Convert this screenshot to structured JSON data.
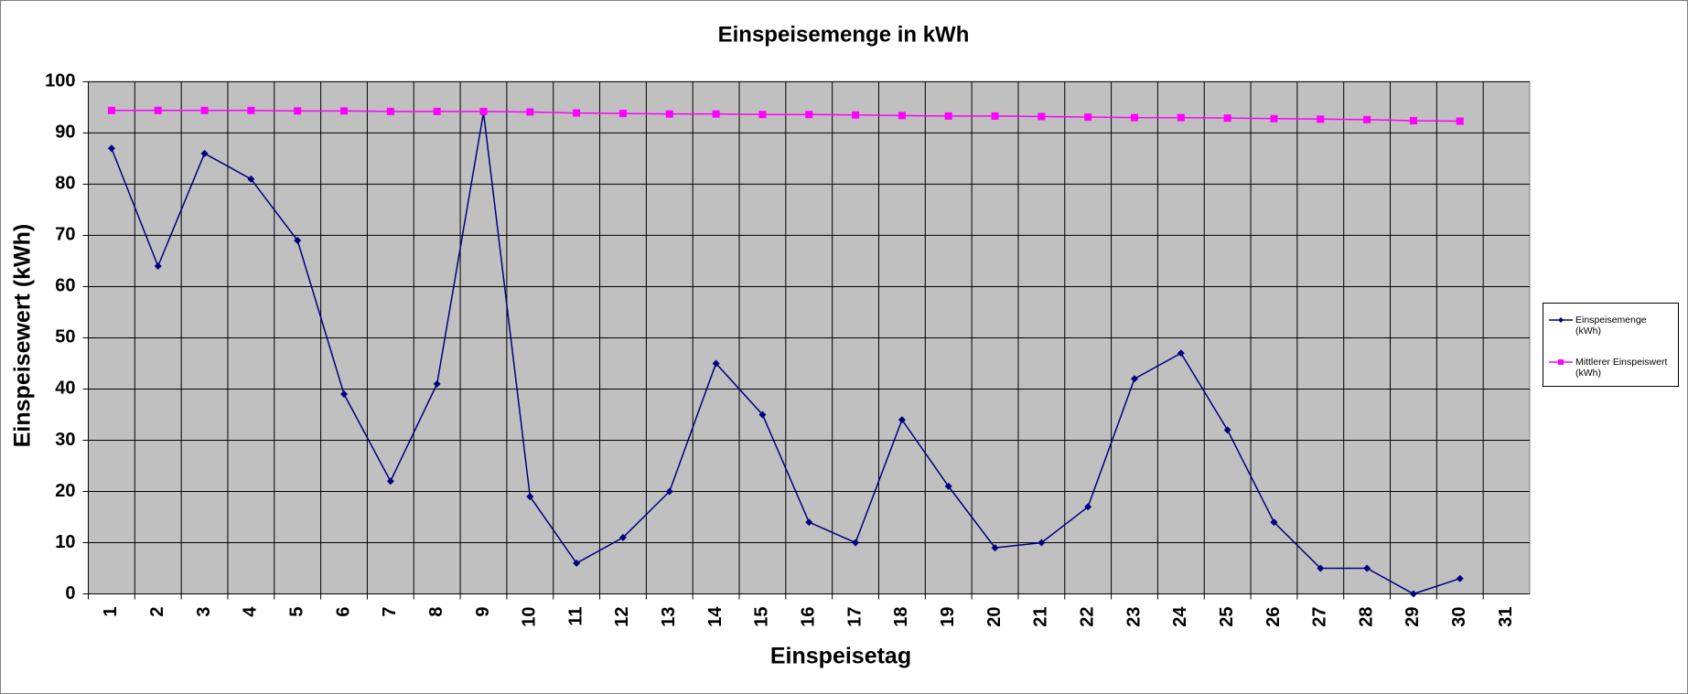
{
  "chart_data": {
    "type": "line",
    "title": "Einspeisemenge in kWh",
    "x_label": "Einspeisetag",
    "y_label": "Einspeisewert  (kWh)",
    "categories": [
      "1",
      "2",
      "3",
      "4",
      "5",
      "6",
      "7",
      "8",
      "9",
      "10",
      "11",
      "12",
      "13",
      "14",
      "15",
      "16",
      "17",
      "18",
      "19",
      "20",
      "21",
      "22",
      "23",
      "24",
      "25",
      "26",
      "27",
      "28",
      "29",
      "30",
      "31"
    ],
    "series": [
      {
        "name": "Einspeisemenge (kWh)",
        "color": "#000080",
        "marker": "diamond",
        "values": [
          87,
          64,
          86,
          81,
          69,
          39,
          22,
          41,
          94,
          19,
          6,
          11,
          20,
          45,
          35,
          14,
          10,
          34,
          21,
          9,
          10,
          17,
          42,
          47,
          32,
          14,
          5,
          5,
          0,
          3,
          null
        ]
      },
      {
        "name": "Mittlerer Einspeiswert (kWh)",
        "color": "#ff00ff",
        "marker": "square",
        "values": [
          94.4,
          94.4,
          94.4,
          94.4,
          94.3,
          94.3,
          94.2,
          94.2,
          94.2,
          94.1,
          93.9,
          93.8,
          93.7,
          93.7,
          93.6,
          93.6,
          93.5,
          93.4,
          93.3,
          93.3,
          93.2,
          93.1,
          93.0,
          93.0,
          92.9,
          92.8,
          92.7,
          92.6,
          92.4,
          92.3,
          null
        ]
      }
    ],
    "ylim": [
      0,
      100
    ],
    "yticks": [
      0,
      10,
      20,
      30,
      40,
      50,
      60,
      70,
      80,
      90,
      100
    ],
    "grid": true,
    "legend": "right",
    "plot_background": "#c0c0c0"
  }
}
